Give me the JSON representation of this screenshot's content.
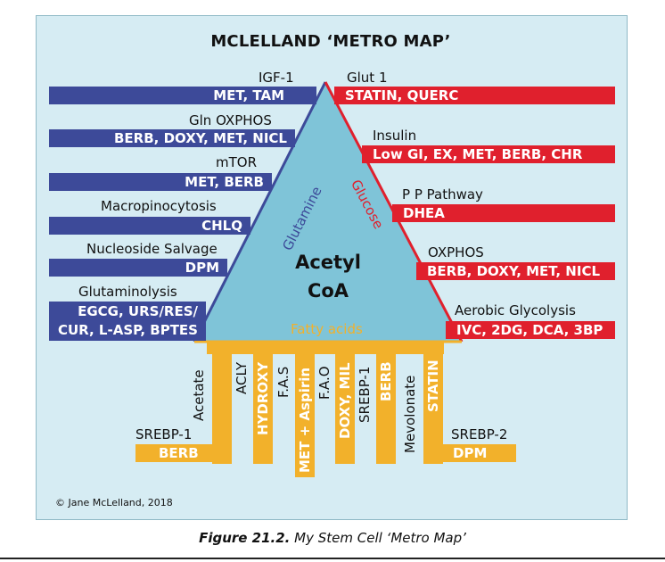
{
  "title": "MCLELLAND ‘METRO MAP’",
  "center": {
    "line1": "Acetyl",
    "line2": "CoA"
  },
  "sides": {
    "left": "Glutamine",
    "right": "Glucose",
    "bottom": "Fatty acids"
  },
  "left_stations": [
    {
      "label": "IGF-1",
      "drugs": "MET, TAM"
    },
    {
      "label": "Gln OXPHOS",
      "drugs": "BERB, DOXY, MET, NICL"
    },
    {
      "label": "mTOR",
      "drugs": "MET, BERB"
    },
    {
      "label": "Macropinocytosis",
      "drugs": "CHLQ"
    },
    {
      "label": "Nucleoside Salvage",
      "drugs": "DPM"
    },
    {
      "label": "Glutaminolysis",
      "drugs_line1": "EGCG, URS/RES/",
      "drugs_line2": "CUR, L-ASP, BPTES"
    }
  ],
  "right_stations": [
    {
      "label": "Glut 1",
      "drugs": "STATIN, QUERC"
    },
    {
      "label": "Insulin",
      "drugs": "Low GI, EX, MET, BERB, CHR"
    },
    {
      "label": "P P Pathway",
      "drugs": "DHEA"
    },
    {
      "label": "OXPHOS",
      "drugs": "BERB, DOXY, MET, NICL"
    },
    {
      "label": "Aerobic Glycolysis",
      "drugs": "IVC, 2DG, DCA, 3BP"
    }
  ],
  "bottom_columns": [
    {
      "label": "Acetate"
    },
    {
      "label": "ACLY",
      "drugs": "HYDROXY"
    },
    {
      "label": "F.A.S",
      "drugs": "MET + Aspirin"
    },
    {
      "label": "F.A.O",
      "drugs": "DOXY, MIL"
    },
    {
      "label": "SREBP-1",
      "drugs": "BERB"
    },
    {
      "label": "Mevolonate",
      "drugs": "STATIN"
    }
  ],
  "bottom_left": {
    "label": "SREBP-1",
    "drugs": "BERB"
  },
  "bottom_right": {
    "label": "SREBP-2",
    "drugs": "DPM"
  },
  "copyright": "© Jane McLelland, 2018",
  "caption": {
    "figure": "Figure 21.2.",
    "text": " My Stem Cell ‘Metro Map’"
  },
  "colors": {
    "glutamine": "#3d4a99",
    "glucose": "#e0202d",
    "fatty_acids": "#f2b12b",
    "triangle": "#7fc4d8",
    "background": "#d6ecf3"
  }
}
